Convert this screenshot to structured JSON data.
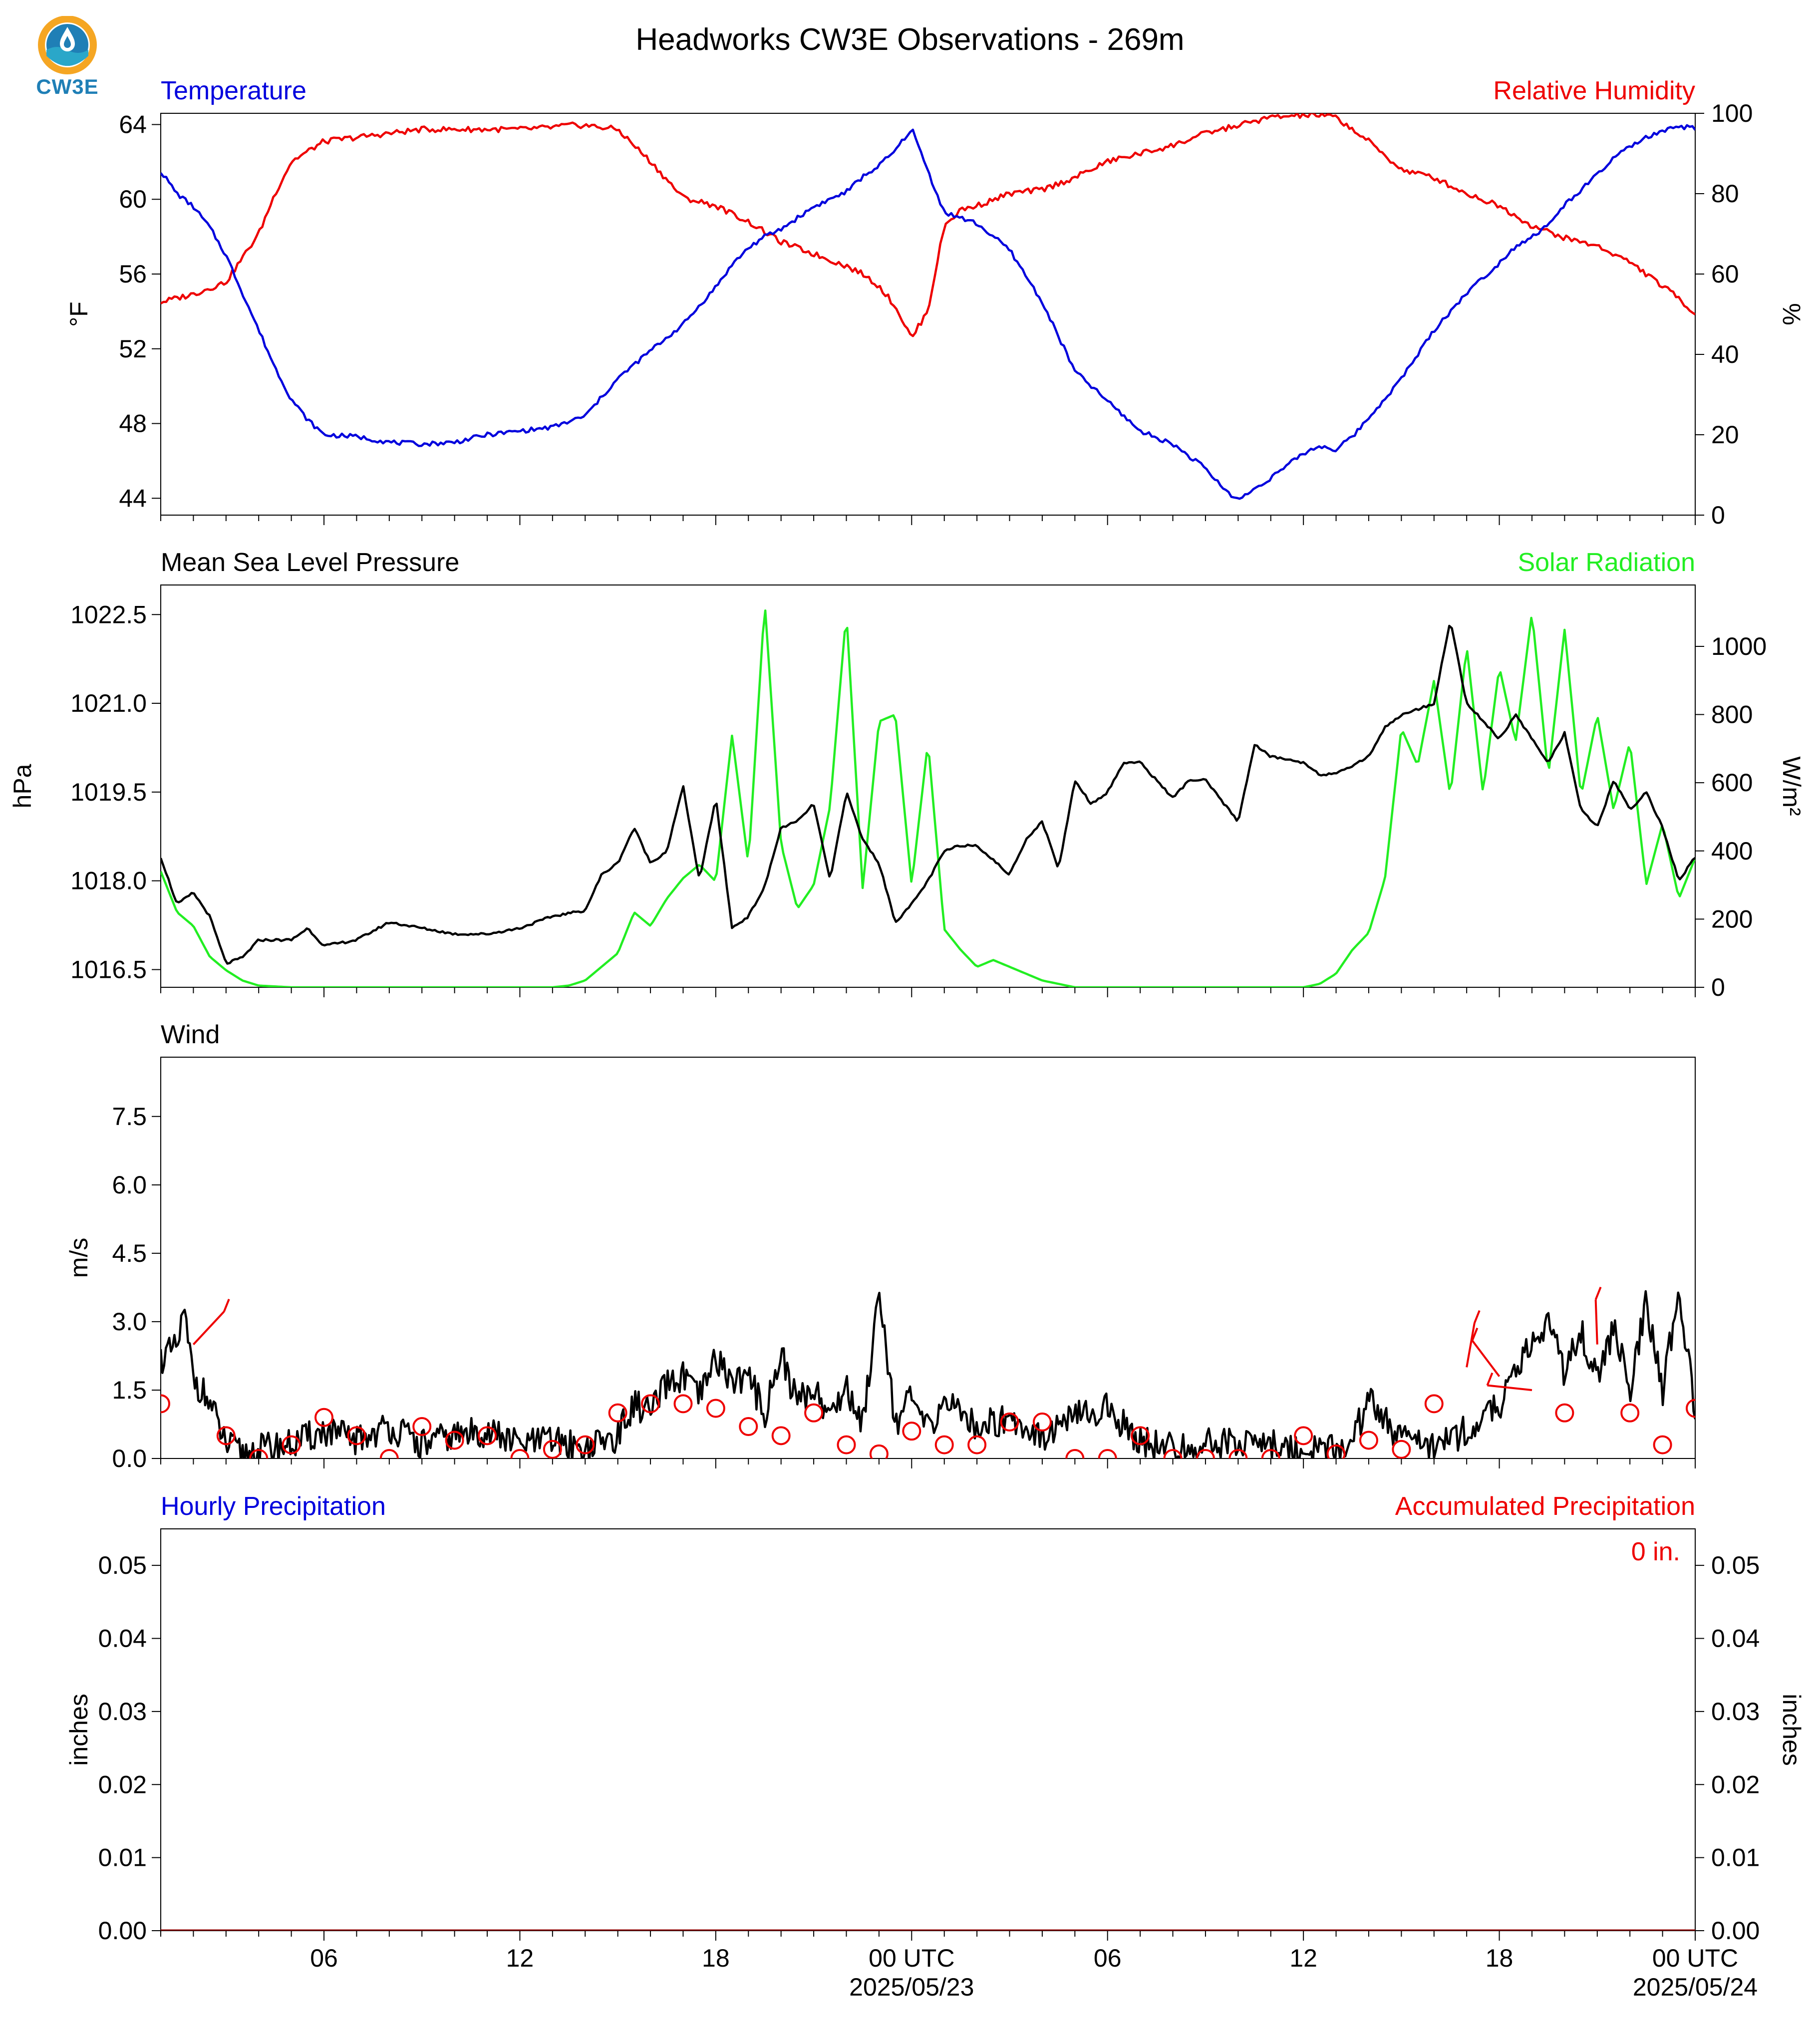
{
  "title": "Headworks CW3E Observations - 269m",
  "logo": {
    "text": "CW3E",
    "colors": {
      "ring": "#f5a623",
      "drop": "#1f7fb6",
      "wave": "#2aa7c9"
    }
  },
  "colors": {
    "blue": "#0000dd",
    "red": "#ee0000",
    "green": "#22ee22",
    "black": "#000000"
  },
  "x_axis": {
    "ticks": [
      "06",
      "12",
      "18",
      "00 UTC",
      "06",
      "12",
      "18",
      "00 UTC"
    ],
    "dates": [
      "2025/05/23",
      "2025/05/24"
    ],
    "range_hours": [
      0,
      47
    ]
  },
  "panels": {
    "temp_rh": {
      "left_title": "Temperature",
      "right_title": "Relative Humidity",
      "left_ylabel": "°F",
      "right_ylabel": "%",
      "left_ticks": [
        "44",
        "48",
        "52",
        "56",
        "60",
        "64"
      ],
      "right_ticks": [
        "0",
        "20",
        "40",
        "60",
        "80",
        "100"
      ]
    },
    "pressure_solar": {
      "left_title": "Mean Sea Level Pressure",
      "right_title": "Solar Radiation",
      "left_ylabel": "hPa",
      "right_ylabel": "W/m²",
      "left_ticks": [
        "1016.5",
        "1018.0",
        "1019.5",
        "1021.0",
        "1022.5"
      ],
      "right_ticks": [
        "0",
        "200",
        "400",
        "600",
        "800",
        "1000"
      ]
    },
    "wind": {
      "left_title": "Wind",
      "left_ylabel": "m/s",
      "left_ticks": [
        "0.0",
        "1.5",
        "3.0",
        "4.5",
        "6.0",
        "7.5"
      ]
    },
    "precip": {
      "left_title": "Hourly Precipitation",
      "right_title": "Accumulated Precipitation",
      "left_ylabel": "inches",
      "right_ylabel": "inches",
      "left_ticks": [
        "0.00",
        "0.01",
        "0.02",
        "0.03",
        "0.04",
        "0.05"
      ],
      "right_ticks": [
        "0.00",
        "0.01",
        "0.02",
        "0.03",
        "0.04",
        "0.05"
      ],
      "annotation": "0 in."
    }
  },
  "chart_data": [
    {
      "type": "line",
      "title": "Temperature",
      "ylabel": "°F",
      "ylim": [
        43.1,
        64.6
      ],
      "x_hours": [
        0,
        0.5,
        1,
        1.5,
        2,
        2.5,
        3,
        3.5,
        4,
        4.5,
        5,
        6,
        7,
        8,
        9,
        10,
        11,
        12,
        13,
        14,
        15,
        16,
        17,
        17.5,
        18,
        18.5,
        19,
        20,
        21,
        21.5,
        22,
        22.5,
        23,
        23.5,
        24,
        25,
        26,
        27,
        28,
        29,
        30,
        31,
        32,
        32.5,
        33,
        34,
        35,
        35.5,
        36,
        36.5,
        37,
        38,
        39,
        40,
        41,
        41.5,
        42,
        42.5,
        43,
        43.5,
        44,
        44.5,
        45,
        45.5,
        46,
        46.5,
        47
      ],
      "series": [
        {
          "name": "Temperature",
          "color": "#0000dd",
          "values": [
            61.5,
            60.3,
            59.6,
            58.5,
            57.0,
            55.0,
            53.0,
            51.0,
            49.3,
            48.2,
            47.4,
            47.3,
            47.0,
            46.9,
            47.0,
            47.4,
            47.6,
            47.8,
            48.4,
            50.4,
            51.9,
            53.3,
            55.3,
            56.5,
            57.4,
            58.0,
            58.4,
            59.6,
            60.4,
            61.2,
            61.8,
            62.6,
            63.8,
            61.5,
            59.3,
            58.7,
            57.3,
            54.5,
            50.8,
            49.2,
            47.6,
            46.9,
            45.6,
            44.6,
            43.9,
            45.1,
            46.4,
            46.8,
            46.6,
            47.3,
            48.3,
            50.4,
            53.0,
            55.0,
            56.6,
            57.5,
            58.0,
            58.6,
            59.7,
            60.5,
            61.3,
            62.2,
            62.8,
            63.3,
            63.6,
            63.9,
            63.8
          ]
        }
      ],
      "secondary": {
        "title": "Relative Humidity",
        "ylabel": "%",
        "ylim": [
          0,
          100
        ],
        "series": [
          {
            "name": "Relative Humidity",
            "color": "#ee0000",
            "x_hours": [
              0,
              1,
              2,
              2.5,
              3,
              3.5,
              4,
              5,
              6,
              7,
              8,
              9,
              10,
              11,
              12,
              12.5,
              13,
              14,
              15,
              16,
              17,
              18,
              19,
              20,
              21,
              21.5,
              22,
              22.5,
              23,
              23.5,
              24,
              24.5,
              25,
              26,
              27,
              28,
              29,
              30,
              31,
              32,
              33,
              34,
              35,
              35.5,
              36,
              36.5,
              37,
              38,
              39,
              40,
              41,
              42,
              43,
              44,
              45,
              45.5,
              46,
              46.5,
              47
            ],
            "values": [
              53,
              55,
              58,
              64,
              70,
              80,
              88,
              93,
              94,
              95,
              96,
              96,
              96,
              96,
              96.5,
              97,
              97,
              96,
              88,
              79,
              77,
              73,
              68,
              65,
              62,
              60,
              57,
              52,
              44,
              51,
              72,
              76,
              77,
              80,
              81,
              84,
              88,
              90,
              92,
              95,
              97,
              99,
              99.5,
              99.5,
              99,
              96,
              93,
              86,
              84,
              80,
              77,
              72,
              69,
              67,
              63,
              60,
              57,
              54,
              50
            ]
          }
        ]
      }
    },
    {
      "type": "line",
      "title": "Mean Sea Level Pressure",
      "ylabel": "hPa",
      "ylim": [
        1016.2,
        1023.0
      ],
      "x_hours": [
        0,
        0.5,
        1,
        1.5,
        2,
        2.5,
        3,
        4,
        4.5,
        5,
        6,
        7,
        8,
        9,
        10,
        11,
        12,
        13,
        13.5,
        14,
        14.5,
        15,
        15.5,
        16,
        16.5,
        17,
        17.5,
        18,
        18.5,
        19,
        19.5,
        20,
        20.5,
        21,
        21.5,
        22,
        22.5,
        23,
        23.5,
        24,
        24.5,
        25,
        26,
        26.5,
        27,
        27.5,
        28,
        28.5,
        29,
        29.5,
        30,
        31,
        31.5,
        32,
        33,
        33.5,
        34,
        35,
        35.5,
        36,
        37,
        37.5,
        38,
        39,
        39.5,
        40,
        40.5,
        41,
        41.5,
        42,
        42.5,
        43,
        43.5,
        44,
        44.5,
        45,
        45.5,
        46,
        46.5,
        47
      ],
      "series": [
        {
          "name": "Mean Sea Level Pressure",
          "color": "#000000",
          "values": [
            1018.4,
            1017.6,
            1017.8,
            1017.4,
            1016.6,
            1016.7,
            1017.0,
            1017.0,
            1017.2,
            1016.9,
            1017.0,
            1017.3,
            1017.2,
            1017.1,
            1017.1,
            1017.2,
            1017.4,
            1017.5,
            1018.1,
            1018.3,
            1018.9,
            1018.3,
            1018.5,
            1019.6,
            1018.0,
            1019.4,
            1017.2,
            1017.4,
            1017.9,
            1018.9,
            1019.0,
            1019.3,
            1018.0,
            1019.5,
            1018.7,
            1018.3,
            1017.3,
            1017.6,
            1018.0,
            1018.5,
            1018.6,
            1018.6,
            1018.1,
            1018.7,
            1019.0,
            1018.2,
            1019.7,
            1019.3,
            1019.5,
            1020.0,
            1020.0,
            1019.4,
            1019.7,
            1019.7,
            1019.0,
            1020.3,
            1020.1,
            1020.0,
            1019.8,
            1019.8,
            1020.1,
            1020.6,
            1020.8,
            1021.0,
            1022.4,
            1021.0,
            1020.7,
            1020.4,
            1020.8,
            1020.4,
            1020.0,
            1020.5,
            1019.2,
            1018.9,
            1019.7,
            1019.2,
            1019.5,
            1018.9,
            1018.0,
            1018.4
          ]
        }
      ],
      "secondary": {
        "title": "Solar Radiation",
        "ylabel": "W/m²",
        "ylim": [
          0,
          1180
        ],
        "series": [
          {
            "name": "Solar Radiation",
            "color": "#22ee22",
            "x_hours": [
              0,
              0.5,
              1,
              1.5,
              2,
              2.5,
              3,
              4,
              10,
              11,
              12,
              12.5,
              13,
              13.5,
              14,
              14.5,
              15,
              15.5,
              16,
              16.5,
              17,
              17.5,
              18,
              18.5,
              19,
              19.5,
              20,
              20.5,
              21,
              21.5,
              22,
              22.5,
              23,
              23.5,
              24,
              24.5,
              25,
              25.5,
              26,
              26.5,
              27,
              28,
              34,
              35,
              35.5,
              36,
              36.5,
              37,
              37.5,
              38,
              38.5,
              39,
              39.5,
              40,
              40.5,
              41,
              41.5,
              42,
              42.5,
              43,
              43.5,
              44,
              44.5,
              45,
              45.5,
              46,
              46.5,
              47
            ],
            "values": [
              340,
              220,
              180,
              90,
              50,
              20,
              5,
              0,
              0,
              0,
              0,
              5,
              20,
              60,
              100,
              220,
              180,
              260,
              320,
              360,
              310,
              740,
              360,
              1130,
              420,
              230,
              300,
              530,
              1100,
              290,
              780,
              800,
              300,
              720,
              170,
              110,
              60,
              80,
              60,
              40,
              20,
              0,
              0,
              0,
              10,
              40,
              110,
              160,
              320,
              760,
              650,
              900,
              560,
              1000,
              570,
              940,
              720,
              1100,
              620,
              1050,
              560,
              800,
              520,
              720,
              300,
              480,
              260,
              380
            ]
          }
        ]
      }
    },
    {
      "type": "line",
      "title": "Wind",
      "ylabel": "m/s",
      "ylim": [
        0,
        8.8
      ],
      "x_hours": [
        0,
        0.5,
        0.7,
        1,
        1.5,
        2,
        2.5,
        3,
        4,
        5,
        6,
        7,
        8,
        9,
        10,
        11,
        12,
        13,
        14,
        14.5,
        15,
        15.5,
        16,
        16.5,
        17,
        17.5,
        18,
        18.5,
        19,
        19.5,
        20,
        20.5,
        21,
        21.5,
        22,
        22.5,
        23,
        23.5,
        24,
        25,
        26,
        27,
        28,
        29,
        30,
        31,
        32,
        33,
        34,
        35,
        36,
        36.5,
        37,
        38,
        39,
        40,
        40.5,
        41,
        41.5,
        42,
        42.5,
        43,
        43.5,
        44,
        44.5,
        45,
        45.5,
        46,
        46.5,
        47
      ],
      "series": [
        {
          "name": "Wind speed",
          "color": "#000000",
          "values": [
            2.2,
            2.4,
            3.2,
            1.8,
            1.2,
            0.3,
            0.1,
            0.2,
            0.3,
            0.6,
            0.4,
            0.7,
            0.3,
            0.5,
            0.6,
            0.3,
            0.4,
            0.2,
            0.5,
            1.2,
            1.0,
            1.6,
            1.8,
            1.3,
            2.2,
            1.7,
            1.8,
            1.0,
            2.3,
            1.2,
            1.6,
            0.9,
            1.6,
            0.7,
            3.8,
            0.8,
            1.3,
            0.6,
            1.3,
            0.7,
            0.9,
            0.5,
            0.9,
            1.1,
            0.4,
            0.2,
            0.3,
            0.4,
            0.3,
            0.2,
            0.2,
            0.4,
            1.3,
            0.4,
            0.3,
            0.6,
            0.8,
            1.2,
            1.8,
            2.6,
            3.0,
            1.9,
            2.8,
            1.7,
            2.9,
            1.5,
            3.4,
            1.4,
            3.8,
            1.0
          ]
        }
      ],
      "wind_barbs": {
        "color": "#ee0000",
        "x_hours": [
          0,
          1,
          2,
          3,
          4,
          5,
          6,
          7,
          8,
          9,
          10,
          11,
          12,
          13,
          14,
          15,
          16,
          17,
          18,
          19,
          20,
          21,
          22,
          23,
          24,
          25,
          26,
          27,
          28,
          29,
          30,
          31,
          32,
          33,
          34,
          35,
          36,
          37,
          38,
          39,
          40,
          41,
          42,
          43,
          44,
          45,
          46,
          47
        ],
        "speed": [
          1.2,
          2.5,
          0.5,
          0.0,
          0.3,
          0.9,
          0.5,
          0.0,
          0.7,
          0.4,
          0.5,
          0.0,
          0.2,
          0.3,
          1.0,
          1.2,
          1.2,
          1.1,
          0.7,
          0.5,
          1.0,
          0.3,
          0.1,
          0.6,
          0.3,
          0.3,
          0.8,
          0.8,
          0.0,
          0.0,
          0.5,
          0.0,
          0.0,
          0.0,
          0.0,
          0.5,
          0.1,
          0.4,
          0.2,
          1.2,
          2.0,
          1.8,
          1.5,
          1.0,
          2.5,
          1.0,
          0.3,
          1.1
        ]
      }
    },
    {
      "type": "bar",
      "title": "Hourly Precipitation",
      "ylabel": "inches",
      "ylim": [
        0,
        0.055
      ],
      "x_hours": [
        0,
        47
      ],
      "series": [
        {
          "name": "Hourly Precipitation",
          "color": "#0000dd",
          "values": [
            0,
            0
          ]
        },
        {
          "name": "Accumulated Precipitation",
          "color": "#8b0000",
          "values": [
            0,
            0
          ]
        }
      ],
      "annotations": [
        "0 in."
      ]
    }
  ]
}
